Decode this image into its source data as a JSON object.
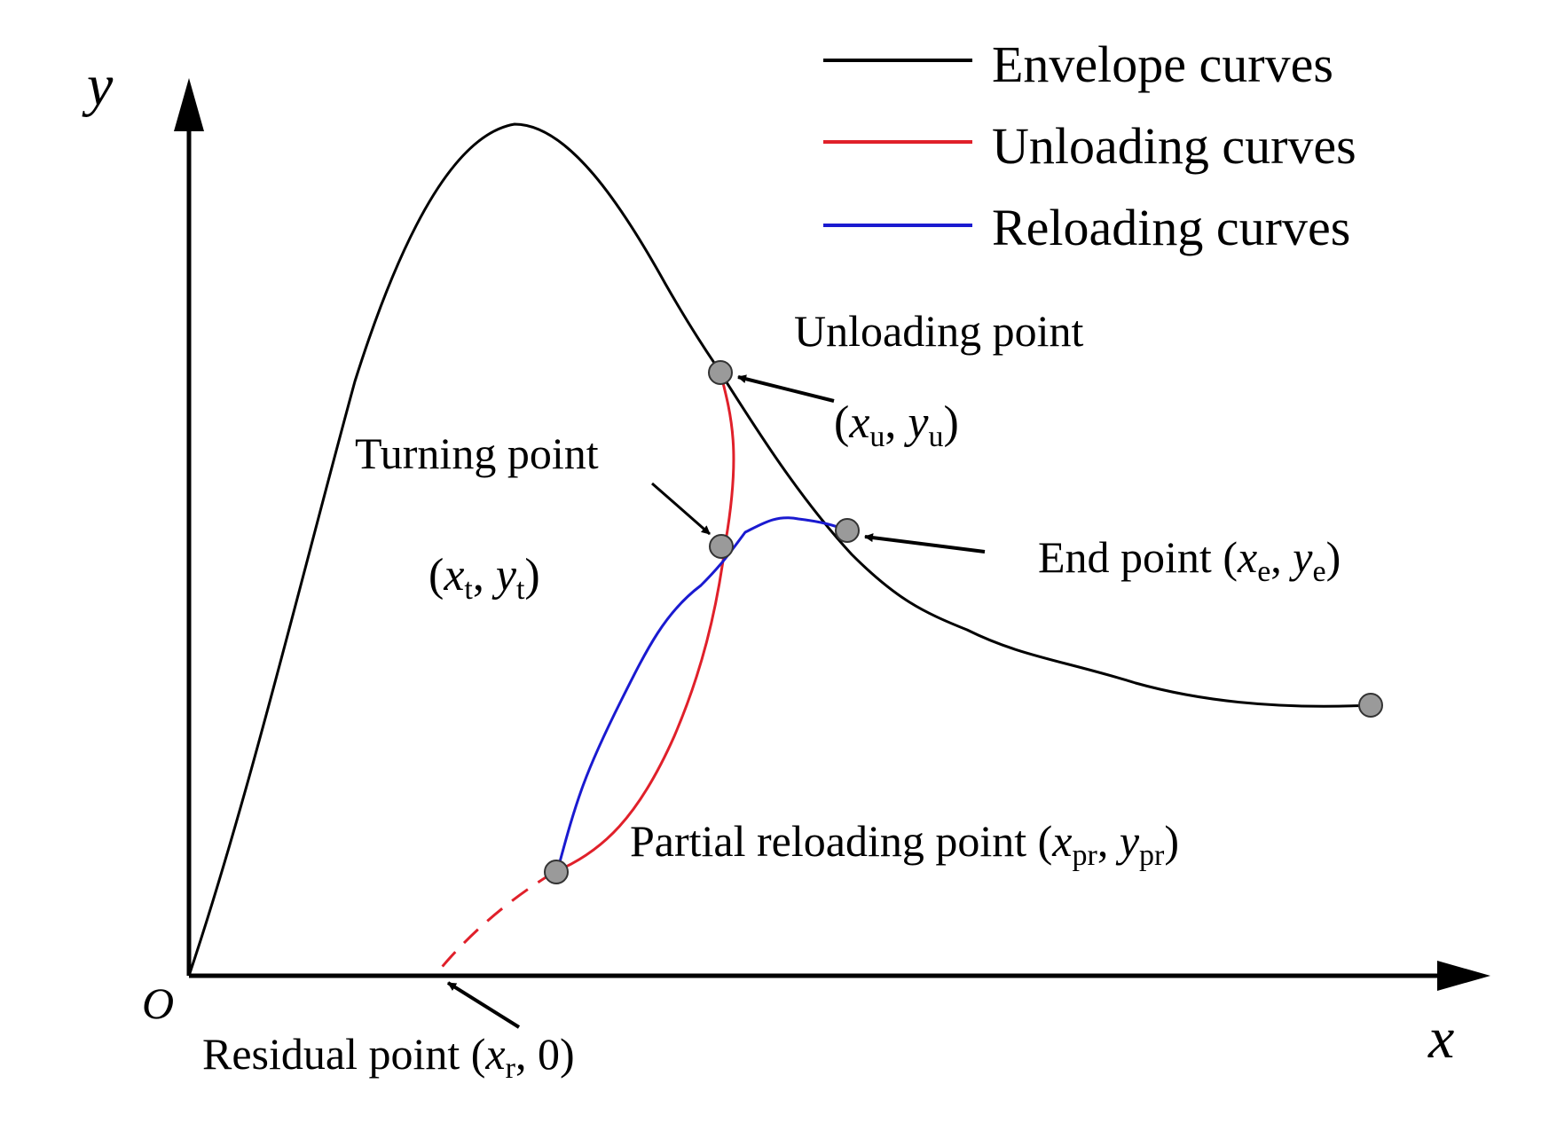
{
  "axes": {
    "x_label": "x",
    "y_label": "y",
    "origin_label": "O"
  },
  "legend": {
    "envelope": {
      "label": "Envelope curves",
      "color": "#000000"
    },
    "unloading": {
      "label": "Unloading curves",
      "color": "#e0202a"
    },
    "reloading": {
      "label": "Reloading curves",
      "color": "#1a1ad0"
    }
  },
  "points": {
    "unloading": {
      "name": "Unloading point",
      "x_var": "x",
      "x_sub": "u",
      "y_var": "y",
      "y_sub": "u"
    },
    "turning": {
      "name": "Turning point",
      "x_var": "x",
      "x_sub": "t",
      "y_var": "y",
      "y_sub": "t"
    },
    "end": {
      "name": "End point",
      "x_var": "x",
      "x_sub": "e",
      "y_var": "y",
      "y_sub": "e"
    },
    "partial_reloading": {
      "name": "Partial reloading point",
      "x_var": "x",
      "x_sub": "pr",
      "y_var": "y",
      "y_sub": "pr"
    },
    "residual": {
      "name": "Residual point",
      "x_var": "x",
      "x_sub": "r",
      "y_value": "0"
    }
  },
  "colors": {
    "axis": "#000000",
    "point_fill": "#9a9a9a",
    "point_stroke": "#333333"
  }
}
